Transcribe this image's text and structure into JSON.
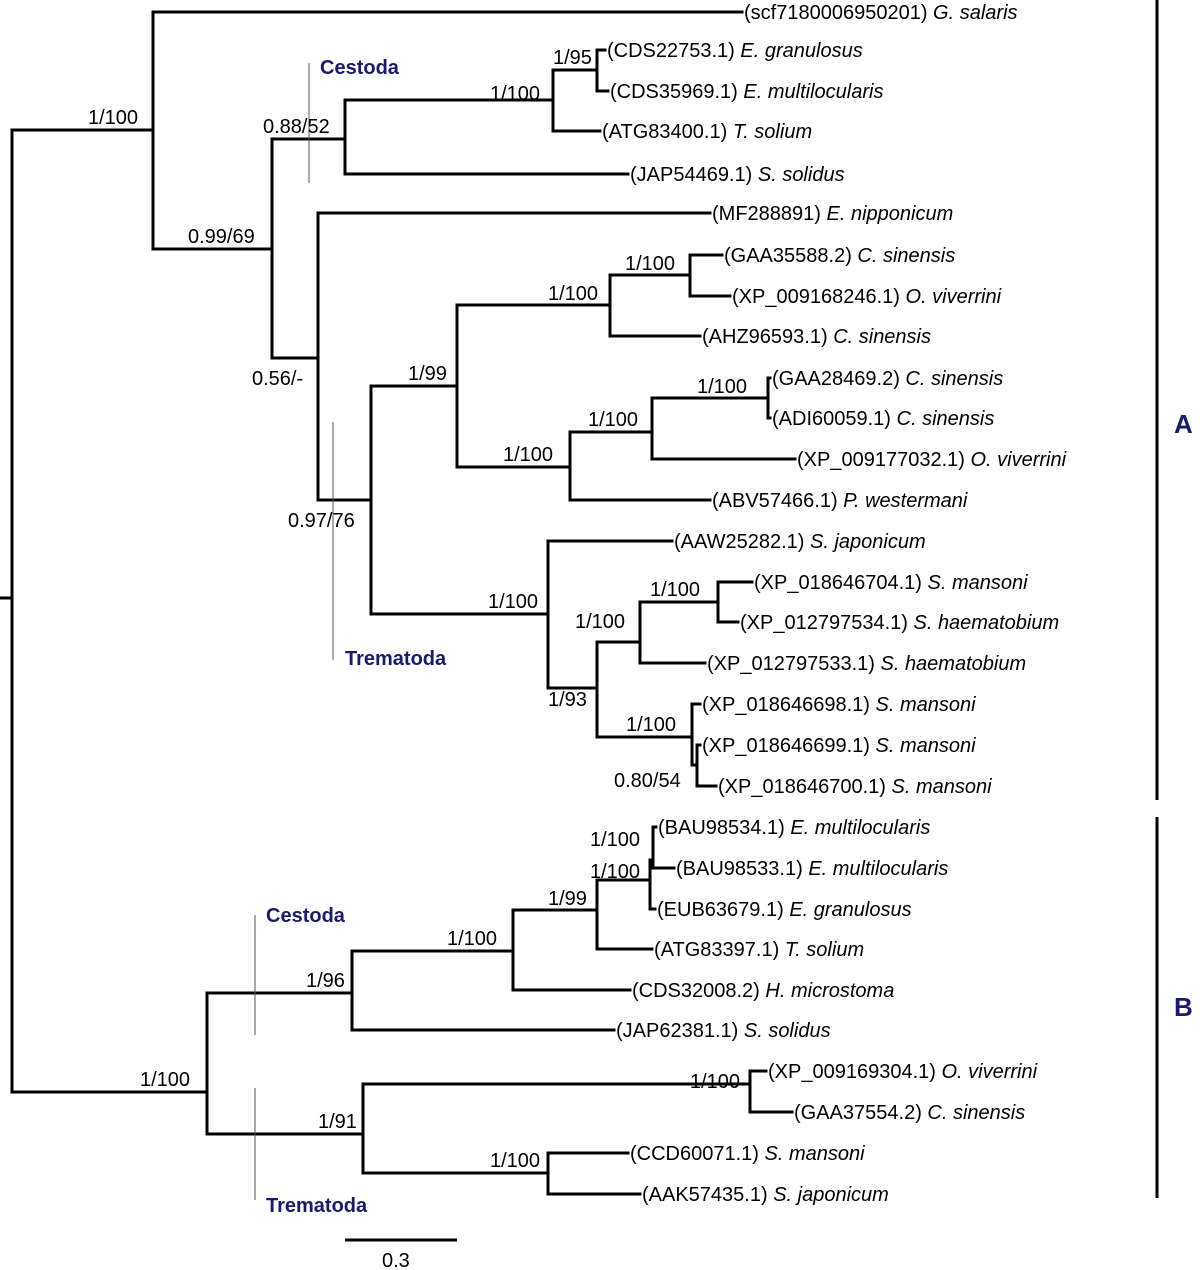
{
  "colors": {
    "branch": "#000000",
    "highlight": "#dd1111",
    "group_label": "#1a1a6e"
  },
  "leaves": [
    {
      "acc": "(scf7180006950201)",
      "species": "G. salaris"
    },
    {
      "acc": "(CDS22753.1)",
      "species": "E. granulosus"
    },
    {
      "acc": "(CDS35969.1)",
      "species": "E. multilocularis"
    },
    {
      "acc": "(ATG83400.1)",
      "species": "T. solium"
    },
    {
      "acc": "(JAP54469.1)",
      "species": "S. solidus"
    },
    {
      "acc": "(MF288891)",
      "species": "E. nipponicum",
      "highlight": true
    },
    {
      "acc": "(GAA35588.2)",
      "species": "C. sinensis"
    },
    {
      "acc": "(XP_009168246.1)",
      "species": "O. viverrini"
    },
    {
      "acc": "(AHZ96593.1)",
      "species": "C. sinensis"
    },
    {
      "acc": "(GAA28469.2)",
      "species": "C. sinensis"
    },
    {
      "acc": "(ADI60059.1)",
      "species": "C. sinensis"
    },
    {
      "acc": "(XP_009177032.1)",
      "species": "O. viverrini"
    },
    {
      "acc": "(ABV57466.1)",
      "species": "P. westermani"
    },
    {
      "acc": "(AAW25282.1)",
      "species": "S. japonicum"
    },
    {
      "acc": "(XP_018646704.1)",
      "species": "S. mansoni"
    },
    {
      "acc": "(XP_012797534.1)",
      "species": "S. haematobium"
    },
    {
      "acc": "(XP_012797533.1)",
      "species": "S. haematobium"
    },
    {
      "acc": "(XP_018646698.1)",
      "species": "S. mansoni"
    },
    {
      "acc": "(XP_018646699.1)",
      "species": "S. mansoni"
    },
    {
      "acc": "(XP_018646700.1)",
      "species": "S. mansoni"
    },
    {
      "acc": "(BAU98534.1)",
      "species": "E. multilocularis"
    },
    {
      "acc": "(BAU98533.1)",
      "species": "E. multilocularis"
    },
    {
      "acc": "(EUB63679.1)",
      "species": "E. granulosus"
    },
    {
      "acc": "(ATG83397.1)",
      "species": "T. solium"
    },
    {
      "acc": "(CDS32008.2)",
      "species": "H. microstoma"
    },
    {
      "acc": "(JAP62381.1)",
      "species": "S. solidus"
    },
    {
      "acc": "(XP_009169304.1)",
      "species": "O. viverrini"
    },
    {
      "acc": "(GAA37554.2)",
      "species": "C. sinensis"
    },
    {
      "acc": "(CCD60071.1)",
      "species": "S. mansoni"
    },
    {
      "acc": "(AAK57435.1)",
      "species": "S. japonicum"
    }
  ],
  "support": [
    "1/100",
    "1/95",
    "1/100",
    "0.88/52",
    "0.99/69",
    "1/100",
    "1/100",
    "1/100",
    "1/100",
    "1/100",
    "1/99",
    "0.56/-",
    "0.97/76",
    "1/100",
    "1/100",
    "1/100",
    "1/93",
    "0.80/54",
    "1/100",
    "1/100",
    "1/99",
    "1/100",
    "1/96",
    "1/100",
    "1/100",
    "1/91",
    "1/100"
  ],
  "groups": [
    "Cestoda",
    "Trematoda",
    "Cestoda",
    "Trematoda"
  ],
  "clades": [
    "A",
    "B"
  ],
  "scale_bar": {
    "label": "0.3"
  }
}
